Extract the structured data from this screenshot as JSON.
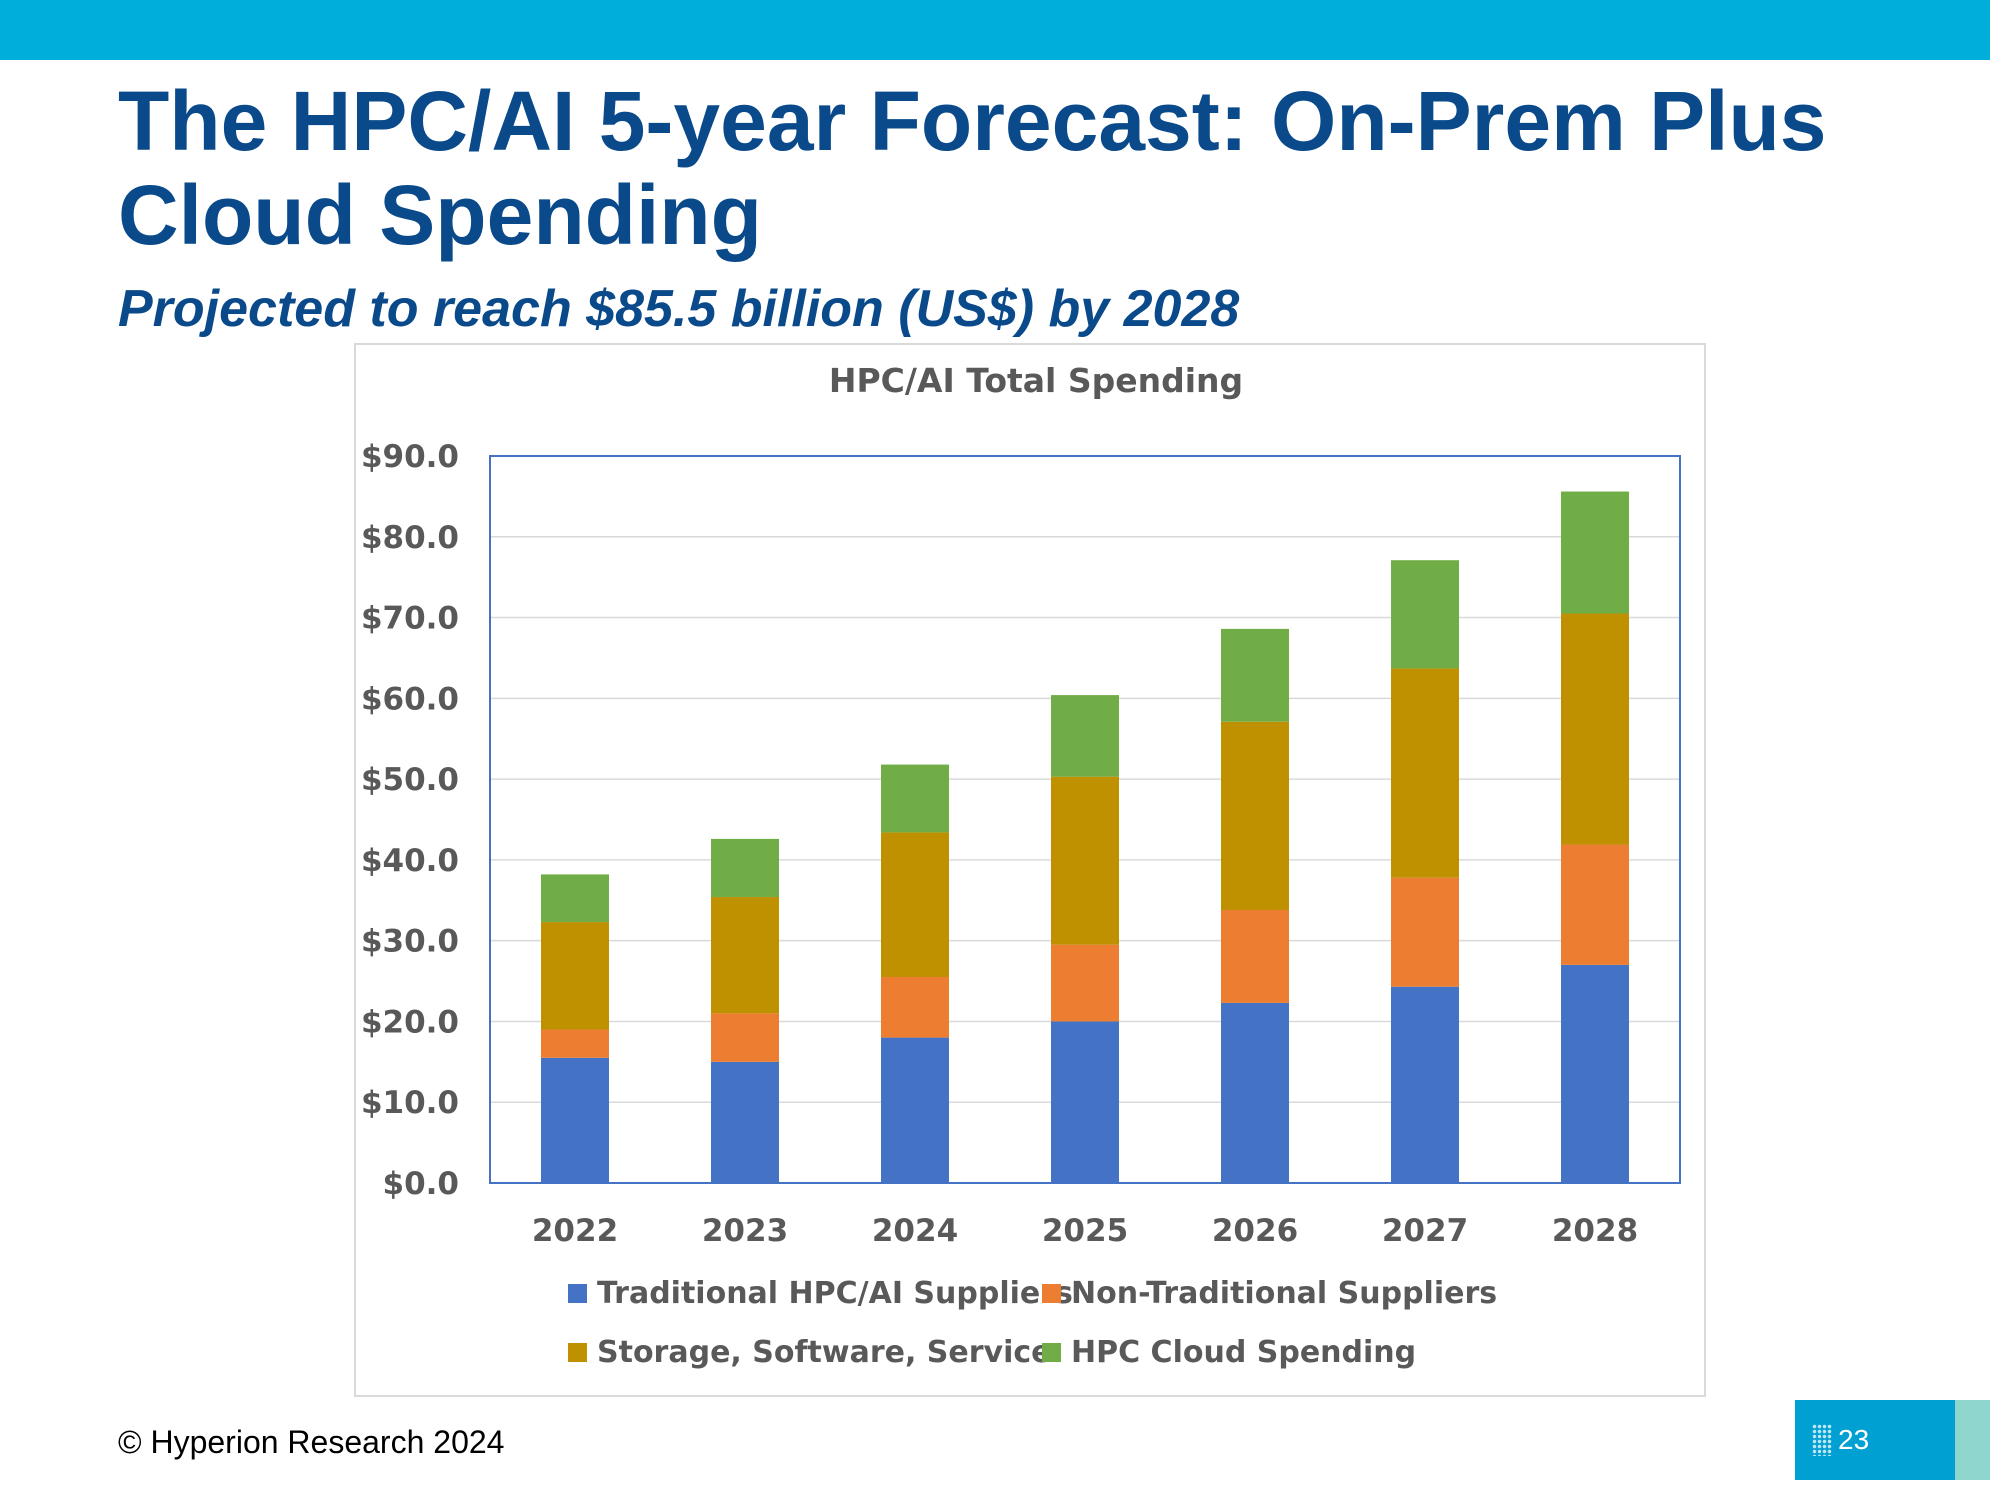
{
  "slide": {
    "title": "The HPC/AI 5-year Forecast: On-Prem Plus Cloud Spending",
    "subtitle": "Projected to reach $85.5 billion (US$) by 2028",
    "footer": "© Hyperion Research 2024",
    "page_number": "23",
    "colors": {
      "top_bar": "#00AEDB",
      "title": "#0A4A8A"
    }
  },
  "chart_data": {
    "type": "bar",
    "stacked": true,
    "title": "HPC/AI Total Spending",
    "categories": [
      "2022",
      "2023",
      "2024",
      "2025",
      "2026",
      "2027",
      "2028"
    ],
    "series": [
      {
        "name": "Traditional HPC/AI Suppliers",
        "color": "#4472C4",
        "values": [
          15.5,
          15.0,
          18.0,
          20.0,
          22.3,
          24.3,
          27.0
        ]
      },
      {
        "name": "Non-Traditional Suppliers",
        "color": "#ED7D31",
        "values": [
          3.5,
          6.0,
          7.5,
          9.5,
          11.5,
          13.5,
          14.9
        ]
      },
      {
        "name": "Storage, Software, Service",
        "color": "#BF9000",
        "values": [
          13.3,
          14.4,
          17.9,
          20.8,
          23.3,
          25.9,
          28.6
        ]
      },
      {
        "name": "HPC Cloud Spending",
        "color": "#70AD47",
        "values": [
          5.9,
          7.2,
          8.4,
          10.1,
          11.5,
          13.4,
          15.1
        ]
      }
    ],
    "ylim": [
      0,
      90
    ],
    "yticks": [
      "$0.0",
      "$10.0",
      "$20.0",
      "$30.0",
      "$40.0",
      "$50.0",
      "$60.0",
      "$70.0",
      "$80.0",
      "$90.0"
    ],
    "ytick_values": [
      0,
      10,
      20,
      30,
      40,
      50,
      60,
      70,
      80,
      90
    ],
    "xlabel": "",
    "ylabel": "",
    "grid": true,
    "legend_position": "bottom",
    "colors": {
      "plot_border": "#4472C4",
      "gridline": "#D9D9D9",
      "text": "#595959"
    }
  }
}
